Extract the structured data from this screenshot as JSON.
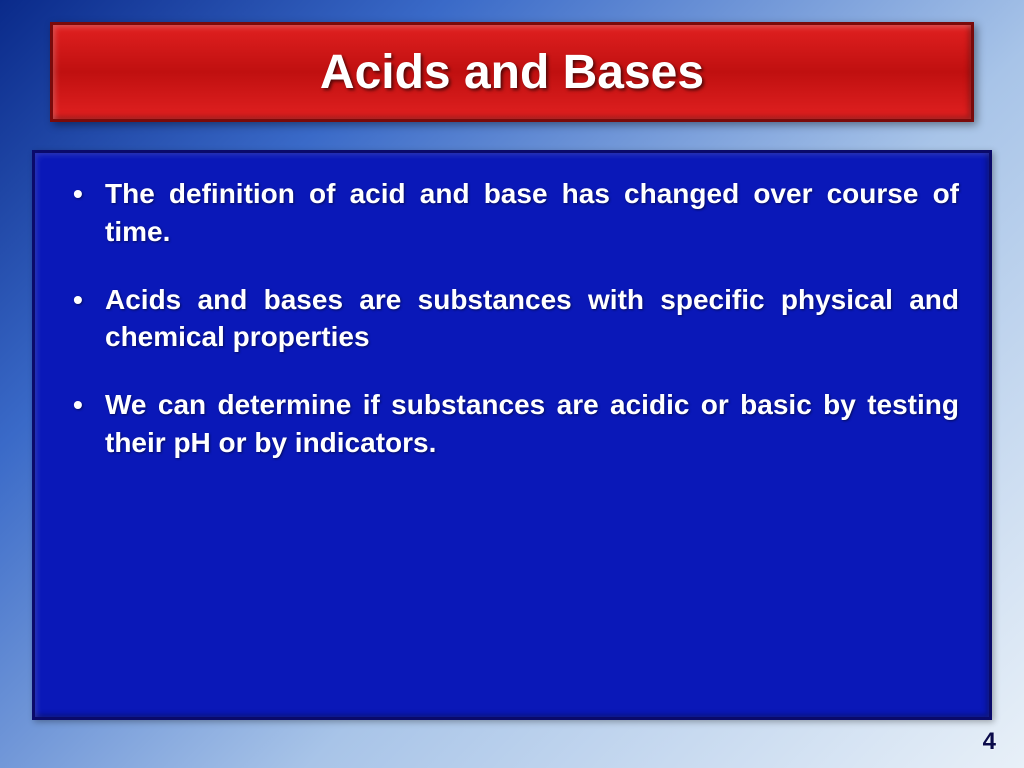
{
  "slide": {
    "title": "Acids and Bases",
    "bullets": [
      "The definition of acid and base has changed over course of time.",
      "Acids and bases are substances with specific physical and chemical properties",
      "We can determine if substances are acidic or basic by testing their pH or by indicators."
    ],
    "page_number": "4"
  },
  "style": {
    "title_banner": {
      "background_gradient": [
        "#e02020",
        "#c01010",
        "#e02020"
      ],
      "border_color": "#7a0a0a",
      "text_color": "#ffffff",
      "font_size_pt": 36,
      "font_weight": "bold"
    },
    "content_panel": {
      "background_color": "#0a18b8",
      "border_color": "#0a0a6a",
      "text_color": "#ffffff",
      "bullet_font_size_pt": 21,
      "bullet_font_weight": "bold",
      "text_align": "justify"
    },
    "page_background": {
      "gradient_stops": [
        "#0a2a8a",
        "#3a6ac8",
        "#a8c4e8",
        "#e8f0f8"
      ],
      "gradient_angle_deg": 135
    },
    "page_number": {
      "color": "#0a0a4a",
      "font_size_pt": 18,
      "font_weight": "bold"
    }
  }
}
